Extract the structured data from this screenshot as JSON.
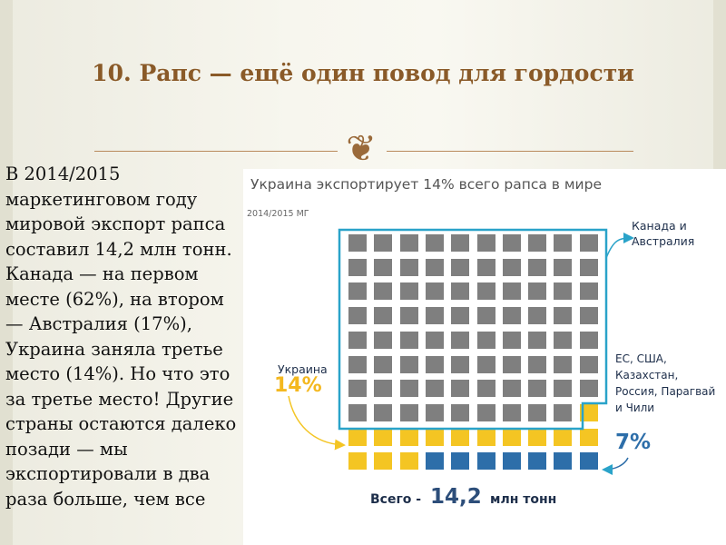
{
  "slide": {
    "title": "10. Рапс — ещё один повод для гордости",
    "ornament": "❦",
    "body_text": "В 2014/2015 маркетинговом году мировой экспорт рапса составил 14,2 млн тонн. Канада — на первом месте (62%), на втором — Австралия (17%), Украина заняла третье место (14%). Но что это за третье место! Другие страны остаются далеко позади — мы экспортировали в два раза больше, чем все"
  },
  "infographic": {
    "title": "Украина экспортирует 14% всего рапса в мире",
    "subtitle": "2014/2015 МГ",
    "canada_label": "Канада и\nАвстралия",
    "countries_label": "ЕС, США,\nКазахстан,\nРоссия, Парагвай\nи Чили",
    "ukraine_label": "Украина",
    "ukraine_pct": "14%",
    "others_pct": "7%",
    "total_prefix": "Всего -",
    "total_value": "14,2",
    "total_unit": "млн тонн"
  },
  "colors": {
    "canada_australia": "#7f7f7f",
    "ukraine": "#f4c523",
    "others": "#2d6ea9",
    "outline": "#2aa3c9",
    "title": "#8a5a28"
  },
  "grid_rows": [
    [
      "grey",
      "grey",
      "grey",
      "grey",
      "grey",
      "grey",
      "grey",
      "grey",
      "grey",
      "grey"
    ],
    [
      "grey",
      "grey",
      "grey",
      "grey",
      "grey",
      "grey",
      "grey",
      "grey",
      "grey",
      "grey"
    ],
    [
      "grey",
      "grey",
      "grey",
      "grey",
      "grey",
      "grey",
      "grey",
      "grey",
      "grey",
      "grey"
    ],
    [
      "grey",
      "grey",
      "grey",
      "grey",
      "grey",
      "grey",
      "grey",
      "grey",
      "grey",
      "grey"
    ],
    [
      "grey",
      "grey",
      "grey",
      "grey",
      "grey",
      "grey",
      "grey",
      "grey",
      "grey",
      "grey"
    ],
    [
      "grey",
      "grey",
      "grey",
      "grey",
      "grey",
      "grey",
      "grey",
      "grey",
      "grey",
      "grey"
    ],
    [
      "grey",
      "grey",
      "grey",
      "grey",
      "grey",
      "grey",
      "grey",
      "grey",
      "grey",
      "grey"
    ],
    [
      "grey",
      "grey",
      "grey",
      "grey",
      "grey",
      "grey",
      "grey",
      "grey",
      "grey",
      "yellow"
    ],
    [
      "yellow",
      "yellow",
      "yellow",
      "yellow",
      "yellow",
      "yellow",
      "yellow",
      "yellow",
      "yellow",
      "yellow"
    ],
    [
      "yellow",
      "yellow",
      "yellow",
      "blue",
      "blue",
      "blue",
      "blue",
      "blue",
      "blue",
      "blue"
    ]
  ]
}
